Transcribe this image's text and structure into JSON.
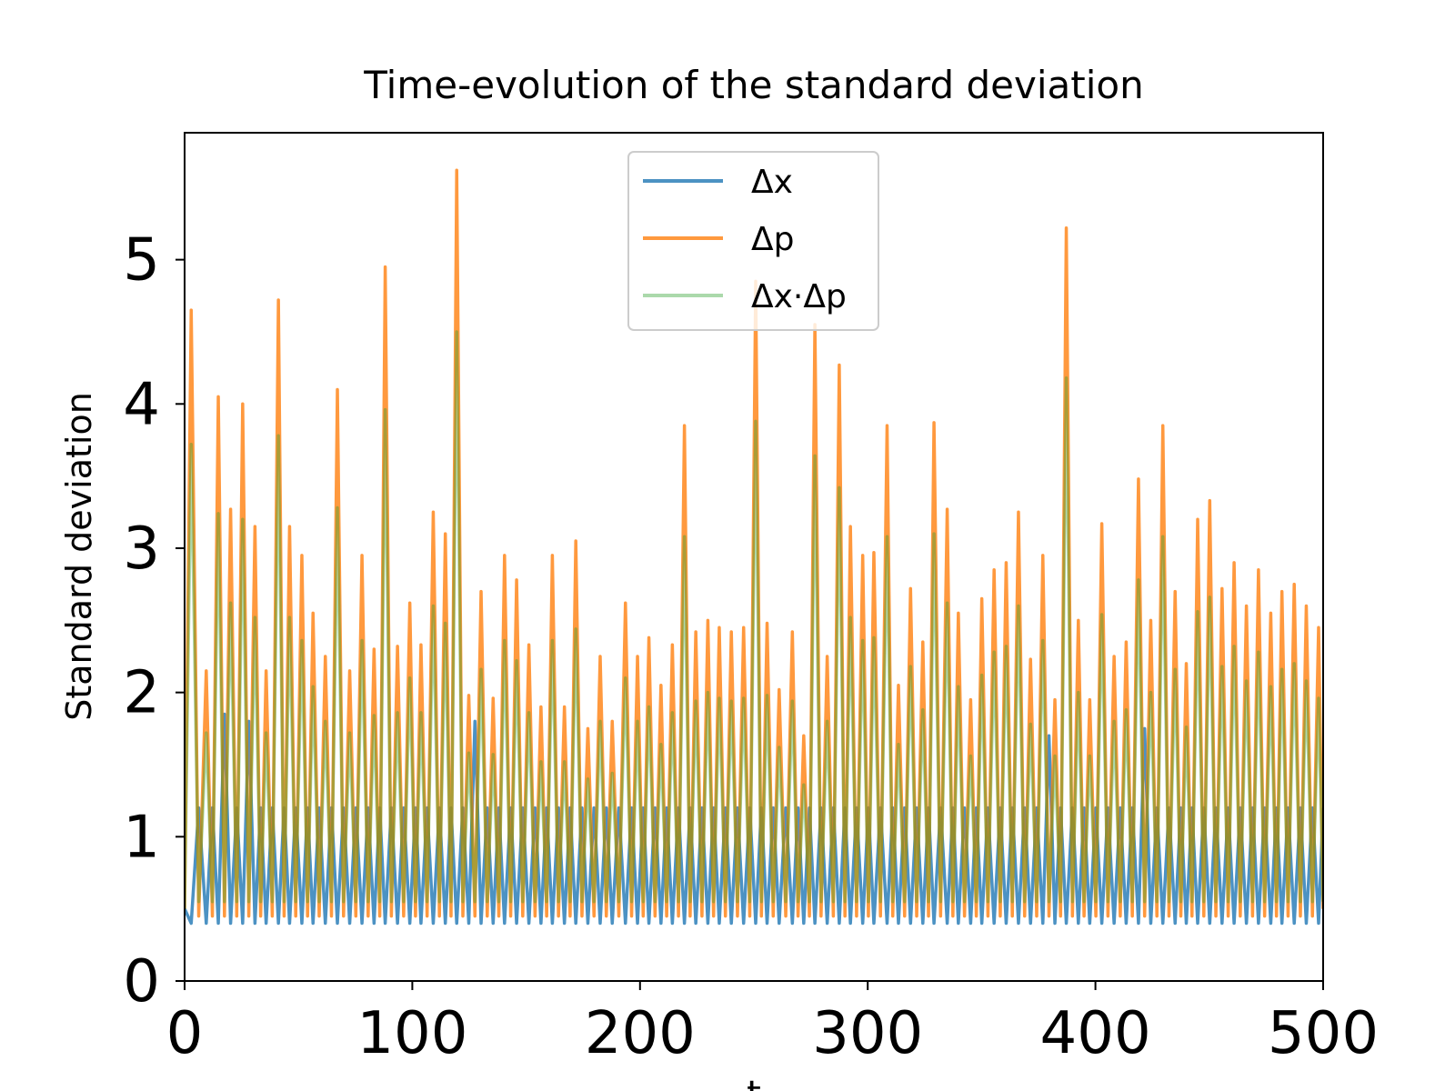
{
  "chart_data": {
    "type": "line",
    "title": "Time-evolution of the standard deviation",
    "xlabel": "t",
    "ylabel": "Standard deviation",
    "xlim": [
      0,
      500
    ],
    "xticks": [
      0,
      100,
      200,
      300,
      400,
      500
    ],
    "ylim": [
      0,
      5.88
    ],
    "yticks": [
      0,
      1,
      2,
      3,
      4,
      5
    ],
    "legend": "upper center",
    "x": [
      0,
      2.9,
      6.2,
      9.5,
      12.2,
      14.8,
      17.5,
      20.2,
      22.9,
      25.5,
      28.2,
      30.9,
      33.4,
      35.8,
      38.5,
      41.2,
      43.7,
      46.1,
      48.8,
      51.5,
      54.0,
      56.4,
      59.1,
      61.8,
      64.5,
      67.1,
      69.8,
      72.5,
      75.2,
      77.9,
      80.6,
      83.2,
      85.7,
      88.1,
      90.8,
      93.5,
      96.2,
      98.9,
      101.4,
      103.8,
      106.5,
      109.2,
      111.9,
      114.5,
      117.0,
      119.5,
      122.2,
      124.8,
      127.5,
      130.2,
      132.9,
      135.5,
      138.0,
      140.5,
      143.2,
      145.8,
      148.5,
      151.2,
      153.9,
      156.5,
      159.0,
      161.5,
      164.2,
      166.8,
      169.3,
      171.8,
      174.5,
      177.1,
      179.8,
      182.5,
      185.2,
      187.8,
      190.7,
      193.6,
      196.3,
      198.9,
      201.4,
      203.9,
      206.6,
      209.2,
      211.7,
      214.2,
      216.9,
      219.5,
      222.0,
      224.5,
      227.2,
      229.8,
      232.3,
      234.8,
      237.5,
      240.1,
      242.8,
      245.5,
      248.2,
      250.8,
      253.3,
      255.8,
      258.5,
      261.1,
      264.0,
      266.9,
      269.4,
      271.9,
      274.4,
      276.8,
      279.5,
      282.2,
      284.9,
      287.5,
      290.0,
      292.4,
      295.1,
      297.8,
      300.3,
      302.7,
      305.6,
      308.5,
      311.0,
      313.5,
      316.2,
      318.8,
      321.5,
      324.2,
      326.7,
      329.1,
      332.0,
      334.9,
      337.4,
      339.8,
      342.5,
      345.2,
      347.7,
      350.1,
      352.8,
      355.5,
      358.2,
      360.8,
      363.5,
      366.2,
      368.9,
      371.5,
      374.2,
      376.9,
      379.6,
      382.2,
      384.7,
      387.2,
      389.9,
      392.5,
      395.0,
      397.5,
      400.2,
      402.8,
      405.5,
      408.2,
      410.9,
      413.5,
      416.2,
      418.9,
      421.6,
      424.3,
      427.0,
      429.6,
      432.3,
      435.0,
      437.5,
      439.9,
      442.4,
      444.9,
      447.6,
      450.2,
      452.9,
      455.6,
      458.3,
      460.9,
      463.6,
      466.3,
      469.0,
      471.6,
      474.3,
      477.0,
      479.5,
      481.9,
      484.6,
      487.3,
      490.0,
      492.6,
      495.3,
      498.0,
      500
    ],
    "series": [
      {
        "name": "Δx",
        "color": "#1f77b4",
        "opacity": 0.8,
        "values": [
          0.5,
          0.4,
          1.2,
          0.4,
          1.2,
          0.4,
          1.85,
          0.4,
          1.2,
          0.4,
          1.8,
          0.4,
          1.2,
          0.4,
          1.2,
          0.4,
          1.2,
          0.4,
          1.2,
          0.4,
          1.2,
          0.4,
          1.2,
          0.4,
          1.2,
          0.4,
          1.2,
          0.4,
          1.2,
          0.4,
          1.2,
          0.4,
          1.2,
          0.4,
          1.2,
          0.4,
          1.2,
          0.4,
          1.2,
          0.4,
          1.2,
          0.4,
          1.2,
          0.4,
          1.2,
          0.4,
          1.2,
          0.4,
          1.8,
          0.4,
          1.2,
          0.4,
          1.2,
          0.4,
          1.2,
          0.4,
          1.2,
          0.4,
          1.2,
          0.4,
          1.2,
          0.4,
          1.2,
          0.4,
          1.2,
          0.4,
          1.2,
          0.4,
          1.2,
          0.4,
          1.2,
          0.4,
          1.2,
          0.4,
          1.2,
          0.4,
          1.2,
          0.4,
          1.2,
          0.4,
          1.2,
          0.4,
          1.2,
          0.4,
          1.2,
          0.4,
          1.2,
          0.4,
          1.2,
          0.4,
          1.2,
          0.4,
          1.2,
          0.4,
          1.2,
          0.4,
          1.2,
          0.4,
          1.2,
          0.4,
          1.2,
          0.4,
          1.2,
          0.4,
          1.2,
          0.4,
          1.2,
          0.4,
          1.2,
          0.4,
          1.2,
          0.4,
          1.2,
          0.4,
          1.2,
          0.4,
          1.2,
          0.4,
          1.2,
          0.4,
          1.2,
          0.4,
          1.2,
          0.4,
          1.2,
          0.4,
          1.2,
          0.4,
          1.2,
          0.4,
          1.2,
          0.4,
          1.2,
          0.4,
          1.2,
          0.4,
          1.2,
          0.4,
          1.2,
          0.4,
          1.2,
          0.4,
          1.2,
          0.4,
          1.7,
          0.4,
          1.2,
          0.4,
          1.2,
          0.4,
          1.2,
          0.4,
          1.2,
          0.4,
          1.2,
          0.4,
          1.2,
          0.4,
          1.2,
          0.4,
          1.75,
          0.4,
          1.2,
          0.4,
          1.2,
          0.4,
          1.2,
          0.4,
          1.2,
          0.4,
          1.2,
          0.4,
          1.2,
          0.4,
          1.2,
          0.4,
          1.2,
          0.4,
          1.2,
          0.4,
          1.2,
          0.4,
          1.2,
          0.4,
          1.2,
          0.4,
          1.2,
          0.4,
          1.2,
          0.4,
          1.2
        ]
      },
      {
        "name": "Δp",
        "color": "#ff7f0e",
        "opacity": 0.8,
        "values": [
          0.5,
          4.65,
          0.45,
          2.15,
          0.45,
          4.05,
          0.45,
          3.27,
          0.45,
          4.0,
          0.45,
          3.15,
          0.45,
          2.15,
          0.45,
          4.72,
          0.45,
          3.15,
          0.45,
          2.95,
          0.45,
          2.55,
          0.45,
          2.25,
          0.45,
          4.1,
          0.45,
          2.15,
          0.45,
          2.95,
          0.45,
          2.3,
          0.45,
          4.95,
          0.45,
          2.32,
          0.45,
          2.62,
          0.45,
          2.33,
          0.45,
          3.25,
          0.45,
          3.1,
          0.45,
          5.62,
          0.45,
          1.98,
          0.45,
          2.7,
          0.45,
          1.96,
          0.45,
          2.95,
          0.45,
          2.78,
          0.45,
          2.33,
          0.45,
          1.9,
          0.45,
          2.95,
          0.45,
          1.9,
          0.45,
          3.05,
          0.45,
          1.75,
          0.45,
          2.25,
          0.45,
          1.8,
          0.45,
          2.62,
          0.45,
          2.25,
          0.45,
          2.38,
          0.45,
          2.05,
          0.45,
          2.33,
          0.45,
          3.85,
          0.45,
          2.42,
          0.45,
          2.5,
          0.45,
          2.45,
          0.45,
          2.42,
          0.45,
          2.45,
          0.45,
          4.85,
          0.45,
          2.48,
          0.45,
          2.02,
          0.45,
          2.42,
          0.45,
          1.7,
          0.45,
          4.55,
          0.45,
          2.25,
          0.45,
          4.27,
          0.45,
          3.15,
          0.45,
          2.95,
          0.45,
          2.97,
          0.45,
          3.85,
          0.45,
          2.05,
          0.45,
          2.72,
          0.45,
          2.35,
          0.45,
          3.87,
          0.45,
          3.27,
          0.45,
          2.55,
          0.45,
          1.95,
          0.45,
          2.65,
          0.45,
          2.85,
          0.45,
          2.9,
          0.45,
          3.25,
          0.45,
          2.23,
          0.45,
          2.95,
          0.45,
          1.95,
          0.45,
          5.22,
          0.45,
          2.5,
          0.45,
          1.95,
          0.45,
          3.17,
          0.45,
          2.25,
          0.45,
          2.35,
          0.45,
          3.48,
          0.45,
          2.5,
          0.45,
          3.85,
          0.45,
          2.7,
          0.45,
          2.2,
          0.45,
          3.2,
          0.45,
          3.33,
          0.45,
          2.72,
          0.45,
          2.9,
          0.45,
          2.6,
          0.45,
          2.85,
          0.45,
          2.55,
          0.45,
          2.7,
          0.45,
          2.75,
          0.45,
          2.6,
          0.45,
          2.45,
          0.5
        ]
      },
      {
        "name": "Δx·Δp",
        "color": "#2ca02c",
        "opacity": 0.4,
        "values": [
          0.5,
          3.72,
          0.55,
          1.72,
          0.55,
          3.24,
          0.55,
          2.62,
          0.55,
          3.2,
          0.55,
          2.52,
          0.55,
          1.72,
          0.55,
          3.78,
          0.55,
          2.52,
          0.55,
          2.36,
          0.55,
          2.04,
          0.55,
          1.8,
          0.55,
          3.28,
          0.55,
          1.72,
          0.55,
          2.36,
          0.55,
          1.84,
          0.55,
          3.96,
          0.55,
          1.86,
          0.55,
          2.1,
          0.55,
          1.86,
          0.55,
          2.6,
          0.55,
          2.48,
          0.55,
          4.5,
          0.55,
          1.58,
          0.55,
          2.16,
          0.55,
          1.57,
          0.55,
          2.36,
          0.55,
          2.22,
          0.55,
          1.86,
          0.55,
          1.52,
          0.55,
          2.36,
          0.55,
          1.52,
          0.55,
          2.44,
          0.55,
          1.4,
          0.55,
          1.8,
          0.55,
          1.44,
          0.55,
          2.1,
          0.55,
          1.8,
          0.55,
          1.9,
          0.55,
          1.64,
          0.55,
          1.86,
          0.55,
          3.08,
          0.55,
          1.94,
          0.55,
          2.0,
          0.55,
          1.96,
          0.55,
          1.94,
          0.55,
          1.96,
          0.55,
          3.88,
          0.55,
          1.98,
          0.55,
          1.62,
          0.55,
          1.94,
          0.55,
          1.36,
          0.55,
          3.64,
          0.55,
          1.8,
          0.55,
          3.42,
          0.55,
          2.52,
          0.55,
          2.36,
          0.55,
          2.38,
          0.55,
          3.08,
          0.55,
          1.64,
          0.55,
          2.18,
          0.55,
          1.88,
          0.55,
          3.1,
          0.55,
          2.62,
          0.55,
          2.04,
          0.55,
          1.56,
          0.55,
          2.12,
          0.55,
          2.28,
          0.55,
          2.32,
          0.55,
          2.6,
          0.55,
          1.78,
          0.55,
          2.36,
          0.55,
          1.56,
          0.55,
          4.18,
          0.55,
          2.0,
          0.55,
          1.56,
          0.55,
          2.54,
          0.55,
          1.8,
          0.55,
          1.88,
          0.55,
          2.78,
          0.55,
          2.0,
          0.55,
          3.08,
          0.55,
          2.16,
          0.55,
          1.76,
          0.55,
          2.56,
          0.55,
          2.66,
          0.55,
          2.18,
          0.55,
          2.32,
          0.55,
          2.08,
          0.55,
          2.28,
          0.55,
          2.04,
          0.55,
          2.16,
          0.55,
          2.2,
          0.55,
          2.08,
          0.55,
          1.96,
          0.55
        ]
      }
    ]
  }
}
